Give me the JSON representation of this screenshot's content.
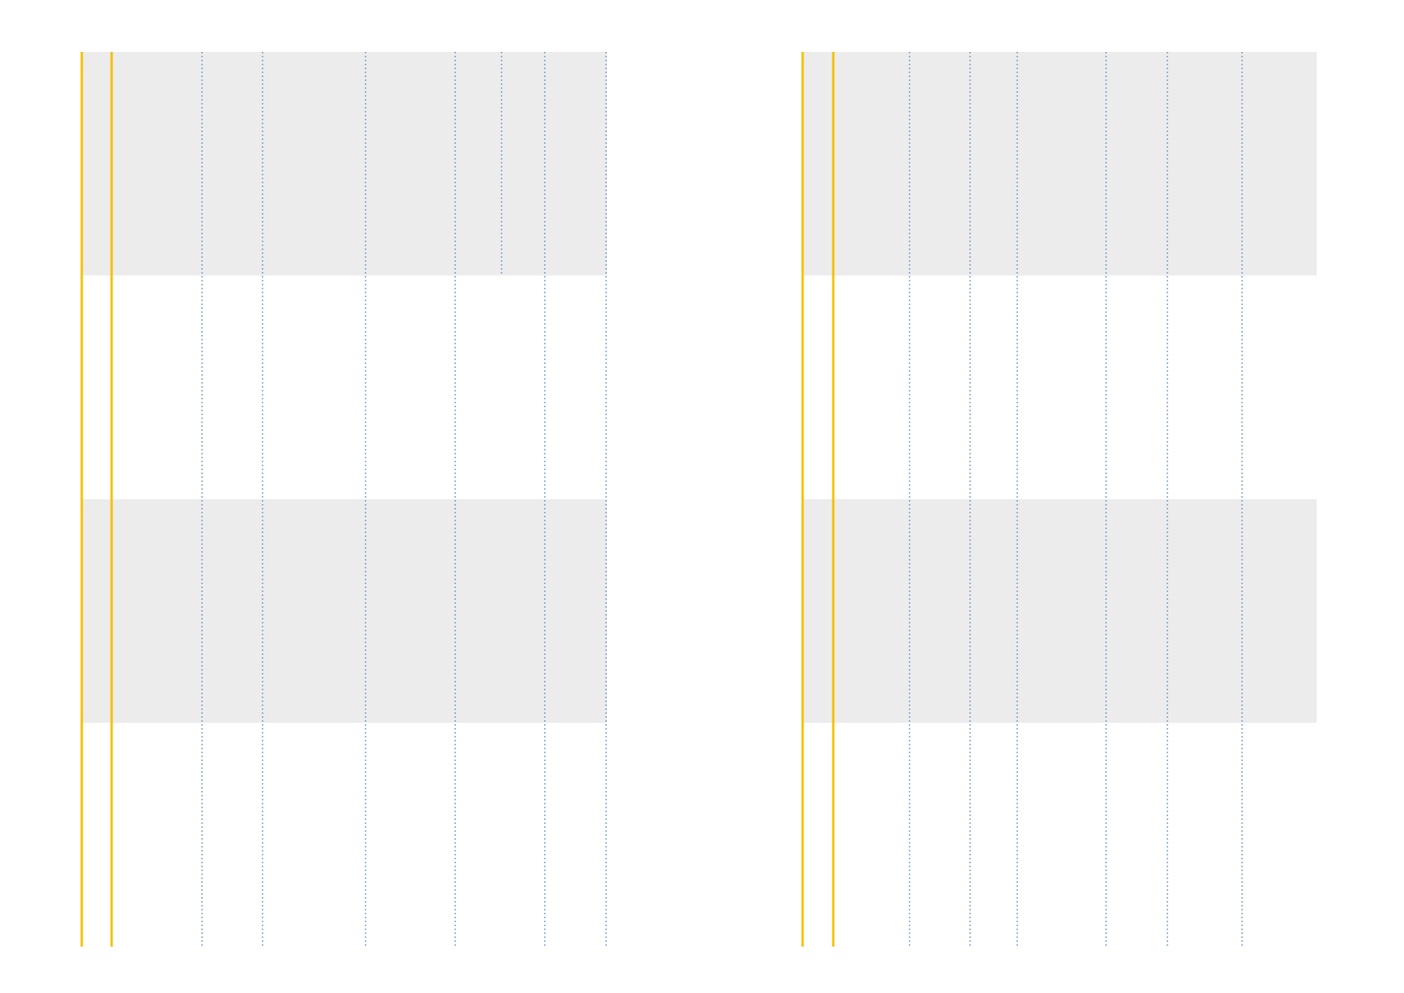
{
  "colors": {
    "background": "#ffffff",
    "band": "#ececec",
    "boundary": "#f5c000",
    "dotted": "#4a86c8"
  },
  "panels": [
    {
      "name": "left-panel",
      "band_count": 4,
      "shaded_bands": [
        0,
        2
      ],
      "boundary_lines": 2,
      "dotted_lines": [
        {
          "span": "full"
        },
        {
          "span": "full"
        },
        {
          "span": "full"
        },
        {
          "span": "full"
        },
        {
          "span": "top-band-only"
        },
        {
          "span": "full"
        },
        {
          "span": "full"
        }
      ]
    },
    {
      "name": "right-panel",
      "band_count": 4,
      "shaded_bands": [
        0,
        2
      ],
      "boundary_lines": 2,
      "dotted_lines": [
        {
          "span": "full"
        },
        {
          "span": "full"
        },
        {
          "span": "full"
        },
        {
          "span": "full"
        },
        {
          "span": "full"
        },
        {
          "span": "full"
        }
      ]
    }
  ]
}
